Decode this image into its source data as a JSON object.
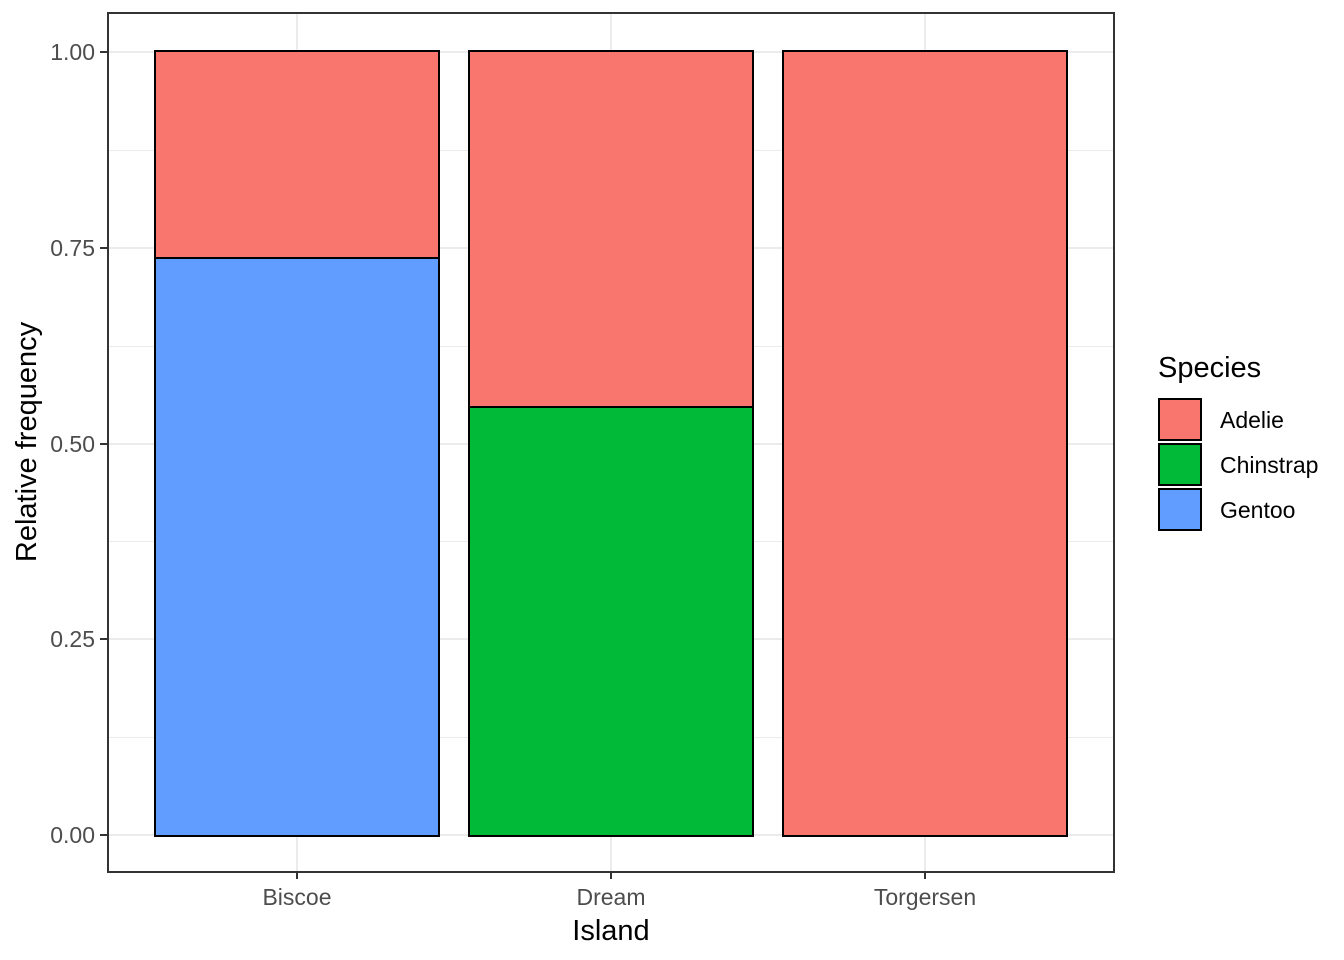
{
  "chart_data": {
    "type": "bar",
    "variant": "stacked-relative-frequency",
    "title": "",
    "xlabel": "Island",
    "ylabel": "Relative frequency",
    "categories": [
      "Biscoe",
      "Dream",
      "Torgersen"
    ],
    "series": [
      {
        "name": "Adelie",
        "color": "#F8766D",
        "values": [
          0.262,
          0.452,
          1.0
        ]
      },
      {
        "name": "Chinstrap",
        "color": "#00BA38",
        "values": [
          0.0,
          0.548,
          0.0
        ]
      },
      {
        "name": "Gentoo",
        "color": "#619CFF",
        "values": [
          0.738,
          0.0,
          0.0
        ]
      }
    ],
    "stack_order_bottom_to_top": [
      "Gentoo",
      "Chinstrap",
      "Adelie"
    ],
    "ylim": [
      0,
      1
    ],
    "yticks": [
      "0.00",
      "0.25",
      "0.50",
      "0.75",
      "1.00"
    ],
    "grid": {
      "horizontal_major": true,
      "horizontal_minor": true,
      "vertical_major_at_category_centers": true
    },
    "legend": {
      "title": "Species",
      "position": "right",
      "entries": [
        {
          "label": "Adelie",
          "color": "#F8766D"
        },
        {
          "label": "Chinstrap",
          "color": "#00BA38"
        },
        {
          "label": "Gentoo",
          "color": "#619CFF"
        }
      ]
    }
  },
  "style": {
    "panel_background": "#FFFFFF",
    "panel_border_color": "#333333",
    "gridline_color": "#EBEBEB",
    "bar_outline_color": "#000000",
    "tick_color": "#333333",
    "tick_label_color": "#4D4D4D",
    "axis_title_color": "#000000"
  }
}
